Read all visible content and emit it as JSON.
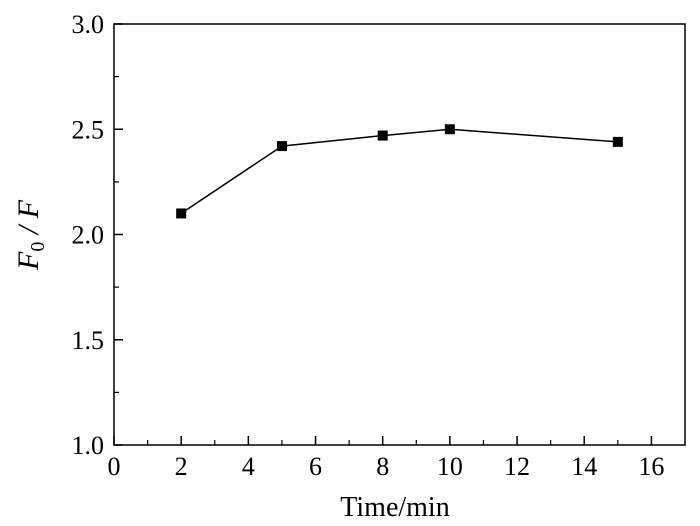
{
  "chart_data": {
    "type": "line",
    "title": "",
    "xlabel": "Time/min",
    "ylabel": {
      "main": "F",
      "subscript": "0",
      "rest": " / F"
    },
    "xlim": [
      0,
      17
    ],
    "ylim": [
      1.0,
      3.0
    ],
    "x_ticks": [
      0,
      2,
      4,
      6,
      8,
      10,
      12,
      14,
      16
    ],
    "x_tick_labels": [
      "0",
      "2",
      "4",
      "6",
      "8",
      "10",
      "12",
      "14",
      "16"
    ],
    "y_ticks": [
      1.0,
      1.5,
      2.0,
      2.5,
      3.0
    ],
    "y_tick_labels": [
      "1.0",
      "1.5",
      "2.0",
      "2.5",
      "3.0"
    ],
    "grid": false,
    "legend": "none",
    "series": [
      {
        "x": [
          2,
          5,
          8,
          10,
          15
        ],
        "y": [
          2.1,
          2.42,
          2.47,
          2.5,
          2.44
        ],
        "marker": "square",
        "color": "#000000"
      }
    ]
  }
}
